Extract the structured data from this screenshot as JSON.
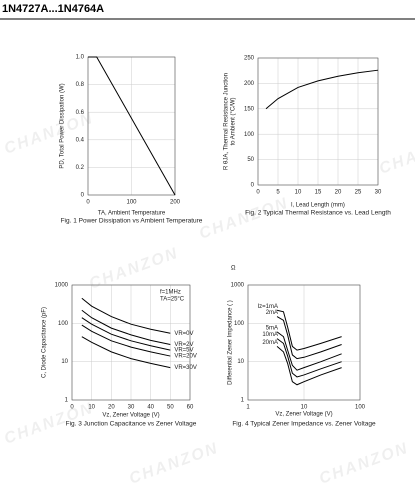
{
  "header": {
    "title": "1N4727A...1N4764A"
  },
  "watermark": "CHANZON",
  "chart_data": [
    {
      "type": "line",
      "ylabel": "PD, Total Power Dissipation (W)",
      "xlabel": "TA, Ambient Temperature",
      "caption": "Fig. 1 Power Dissipation vs Ambient Temperature",
      "x": [
        0,
        20,
        200
      ],
      "values": [
        1,
        1,
        0
      ],
      "color": "#000000",
      "xlim": [
        0,
        200
      ],
      "ylim": [
        0,
        1
      ],
      "xticks": [
        0,
        100,
        200
      ],
      "yticks": [
        0,
        0.2,
        0.4,
        0.6,
        0.8,
        {
          "value": 1,
          "label": "1.0"
        }
      ],
      "grid": true
    },
    {
      "type": "line",
      "ylabel": [
        "R θJA, Thermal Resistance Junction",
        "to Ambient (°C/W)"
      ],
      "xlabel": "l, Lead Length (mm)",
      "caption": "Fig. 2 Typical Thermal Resistance vs. Lead Length",
      "x": [
        2,
        5,
        10,
        15,
        20,
        25,
        30
      ],
      "values": [
        150,
        170,
        192,
        205,
        214,
        221,
        226
      ],
      "color": "#000000",
      "xlim": [
        0,
        30
      ],
      "ylim": [
        0,
        250
      ],
      "xticks": [
        0,
        5,
        10,
        15,
        20,
        25,
        30
      ],
      "yticks": [
        0,
        50,
        100,
        150,
        200,
        250
      ],
      "grid": true
    },
    {
      "type": "line",
      "ylabel": "C, Diode Capacitance (pF)",
      "xlabel": "Vz, Zener Voltage (V)",
      "caption": "Fig. 3 Junction Capacitance vs Zener Voltage",
      "annotations": [
        "f=1MHz",
        "TA=25°C"
      ],
      "label_position": "end",
      "x": [
        5,
        10,
        20,
        30,
        40,
        50
      ],
      "series": [
        {
          "name": "VR=0V",
          "color": "#000000",
          "values": [
            450,
            280,
            150,
            95,
            70,
            55
          ]
        },
        {
          "name": "VR=2V",
          "color": "#000000",
          "values": [
            220,
            140,
            75,
            50,
            36,
            28
          ]
        },
        {
          "name": "VR=5V",
          "color": "#000000",
          "values": [
            140,
            95,
            52,
            35,
            26,
            20
          ]
        },
        {
          "name": "VR=20V",
          "color": "#000000",
          "values": [
            90,
            62,
            35,
            24,
            18,
            14
          ]
        },
        {
          "name": "VR=30V",
          "color": "#000000",
          "values": [
            45,
            32,
            18,
            12,
            9,
            7
          ]
        }
      ],
      "xlim": [
        0,
        60
      ],
      "ylim": [
        1,
        1000
      ],
      "yscale": "log",
      "xticks": [
        0,
        10,
        20,
        30,
        40,
        50,
        60
      ],
      "yticks": [
        1,
        10,
        100,
        1000
      ],
      "grid": true
    },
    {
      "type": "line",
      "ylabel": "Differential Zener Impedance ( )",
      "xlabel": "Vz, Zener Voltage (V)",
      "caption": "Fig. 4 Typical Zener Impedance vs. Zener Voltage",
      "annotations": [
        "Ω"
      ],
      "label_position": "start",
      "x": [
        3.3,
        4.3,
        5.1,
        6.2,
        7.5,
        10,
        20,
        47
      ],
      "series": [
        {
          "name": "Iz=1mA",
          "color": "#000000",
          "values": [
            220,
            200,
            80,
            25,
            20,
            22,
            30,
            45
          ]
        },
        {
          "name": "2mA",
          "color": "#000000",
          "values": [
            150,
            120,
            50,
            15,
            12,
            13,
            18,
            28
          ]
        },
        {
          "name": "5mA",
          "color": "#000000",
          "values": [
            60,
            45,
            20,
            8,
            6,
            7,
            10,
            16
          ]
        },
        {
          "name": "10mA",
          "color": "#000000",
          "values": [
            40,
            30,
            14,
            5,
            4,
            4.5,
            6.5,
            10
          ]
        },
        {
          "name": "20mA",
          "color": "#000000",
          "values": [
            25,
            18,
            9,
            3,
            2.5,
            3,
            4.5,
            7
          ]
        }
      ],
      "xlim": [
        1,
        100
      ],
      "ylim": [
        1,
        1000
      ],
      "xscale": "log",
      "yscale": "log",
      "xticks": [
        1,
        10,
        100
      ],
      "yticks": [
        1,
        10,
        100,
        1000
      ],
      "grid": true
    }
  ]
}
